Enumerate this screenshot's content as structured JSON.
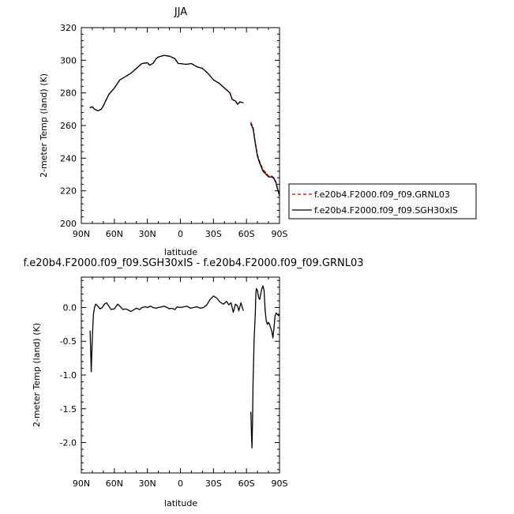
{
  "chart_data": [
    {
      "type": "line",
      "title": "JJA",
      "xlabel": "latitude",
      "ylabel": "2-meter Temp (land) (K)",
      "xlim": [
        90,
        -90
      ],
      "ylim": [
        200,
        320
      ],
      "xticks": [
        90,
        60,
        30,
        0,
        -30,
        -60,
        -90
      ],
      "xtick_labels": [
        "90N",
        "60N",
        "30N",
        "0",
        "30S",
        "60S",
        "90S"
      ],
      "yticks": [
        200,
        220,
        240,
        260,
        280,
        300,
        320
      ],
      "ytick_labels": [
        "200",
        "220",
        "240",
        "260",
        "280",
        "300",
        "320"
      ],
      "legend": {
        "placement": "right",
        "entries": [
          {
            "label": "f.e20b4.F2000.f09_f09.GRNL03",
            "color": "#cc0000",
            "style": "dashed"
          },
          {
            "label": "f.e20b4.F2000.f09_f09.SGH30xIS",
            "color": "#000000",
            "style": "solid"
          }
        ]
      },
      "series": [
        {
          "name": "f.e20b4.F2000.f09_f09.GRNL03",
          "color": "#cc0000",
          "segments": [
            [
              [
                82,
                271
              ],
              [
                80,
                271.5
              ],
              [
                78,
                270
              ],
              [
                75,
                269
              ],
              [
                72,
                270
              ],
              [
                70,
                272
              ],
              [
                68,
                275
              ],
              [
                65,
                279
              ],
              [
                60,
                283
              ],
              [
                55,
                288
              ],
              [
                50,
                290
              ],
              [
                45,
                292
              ],
              [
                40,
                295
              ],
              [
                35,
                298
              ],
              [
                30,
                298.5
              ],
              [
                28,
                297
              ],
              [
                25,
                298
              ],
              [
                22,
                301
              ],
              [
                20,
                302
              ],
              [
                15,
                303
              ],
              [
                10,
                302.5
              ],
              [
                5,
                301
              ],
              [
                2,
                298
              ],
              [
                0,
                298
              ],
              [
                -5,
                297.5
              ],
              [
                -10,
                298
              ],
              [
                -15,
                296
              ],
              [
                -20,
                295
              ],
              [
                -25,
                292
              ],
              [
                -30,
                288
              ],
              [
                -35,
                286
              ],
              [
                -40,
                283
              ],
              [
                -45,
                280
              ],
              [
                -47,
                276
              ],
              [
                -50,
                275
              ],
              [
                -52,
                273
              ],
              [
                -54,
                274.5
              ],
              [
                -57,
                274
              ]
            ],
            [
              [
                -64,
                262
              ],
              [
                -66,
                259
              ],
              [
                -68,
                250
              ],
              [
                -70,
                242
              ],
              [
                -72,
                238
              ],
              [
                -75,
                233
              ],
              [
                -78,
                231
              ],
              [
                -80,
                229
              ],
              [
                -83,
                229
              ],
              [
                -85,
                228
              ],
              [
                -87,
                225
              ],
              [
                -88,
                222
              ],
              [
                -90,
                217
              ]
            ]
          ]
        },
        {
          "name": "f.e20b4.F2000.f09_f09.SGH30xIS",
          "color": "#000000",
          "segments": [
            [
              [
                82,
                271
              ],
              [
                80,
                271.5
              ],
              [
                78,
                270
              ],
              [
                75,
                269
              ],
              [
                72,
                270
              ],
              [
                70,
                272
              ],
              [
                68,
                275
              ],
              [
                65,
                279
              ],
              [
                60,
                283
              ],
              [
                55,
                288
              ],
              [
                50,
                290
              ],
              [
                45,
                292
              ],
              [
                40,
                295
              ],
              [
                35,
                298
              ],
              [
                30,
                298.5
              ],
              [
                28,
                297
              ],
              [
                25,
                298
              ],
              [
                22,
                301
              ],
              [
                20,
                302
              ],
              [
                15,
                303
              ],
              [
                10,
                302.5
              ],
              [
                5,
                301
              ],
              [
                2,
                298
              ],
              [
                0,
                298
              ],
              [
                -5,
                297.5
              ],
              [
                -10,
                298
              ],
              [
                -15,
                296
              ],
              [
                -20,
                295
              ],
              [
                -25,
                292
              ],
              [
                -30,
                288
              ],
              [
                -35,
                286
              ],
              [
                -40,
                283
              ],
              [
                -45,
                280
              ],
              [
                -47,
                276
              ],
              [
                -50,
                275
              ],
              [
                -52,
                273
              ],
              [
                -54,
                274.5
              ],
              [
                -57,
                274
              ]
            ],
            [
              [
                -64,
                261
              ],
              [
                -66,
                258
              ],
              [
                -68,
                249
              ],
              [
                -70,
                241
              ],
              [
                -72,
                237
              ],
              [
                -75,
                232
              ],
              [
                -78,
                230
              ],
              [
                -80,
                228.5
              ],
              [
                -83,
                228.5
              ],
              [
                -85,
                227.5
              ],
              [
                -87,
                224.5
              ],
              [
                -88,
                221.5
              ],
              [
                -90,
                217
              ]
            ]
          ]
        }
      ]
    },
    {
      "type": "line",
      "title": "f.e20b4.F2000.f09_f09.SGH30xIS - f.e20b4.F2000.f09_f09.GRNL03",
      "xlabel": "latitude",
      "ylabel": "2-meter Temp (land) (K)",
      "xlim": [
        90,
        -90
      ],
      "ylim": [
        -2.45,
        0.45
      ],
      "xticks": [
        90,
        60,
        30,
        0,
        -30,
        -60,
        -90
      ],
      "xtick_labels": [
        "90N",
        "60N",
        "30N",
        "0",
        "30S",
        "60S",
        "90S"
      ],
      "yticks": [
        0.0,
        -0.5,
        -1.0,
        -1.5,
        -2.0
      ],
      "ytick_labels": [
        "0.0",
        "-0.5",
        "-1.0",
        "-1.5",
        "-2.0"
      ],
      "series": [
        {
          "color": "#000000",
          "segments": [
            [
              [
                82,
                -0.35
              ],
              [
                81,
                -0.95
              ],
              [
                80,
                -0.45
              ],
              [
                79,
                -0.1
              ],
              [
                78,
                0.0
              ],
              [
                77,
                0.05
              ],
              [
                75,
                0.02
              ],
              [
                73,
                -0.02
              ],
              [
                71,
                0.0
              ],
              [
                69,
                0.05
              ],
              [
                67,
                0.07
              ],
              [
                65,
                0.02
              ],
              [
                63,
                -0.03
              ],
              [
                60,
                -0.02
              ],
              [
                57,
                0.05
              ],
              [
                55,
                0.02
              ],
              [
                52,
                -0.03
              ],
              [
                50,
                -0.02
              ],
              [
                47,
                -0.04
              ],
              [
                45,
                -0.06
              ],
              [
                42,
                -0.03
              ],
              [
                40,
                -0.01
              ],
              [
                37,
                -0.03
              ],
              [
                35,
                0.0
              ],
              [
                32,
                0.01
              ],
              [
                30,
                0.0
              ],
              [
                27,
                0.02
              ],
              [
                25,
                0.0
              ],
              [
                22,
                -0.01
              ],
              [
                20,
                0.0
              ],
              [
                17,
                0.01
              ],
              [
                15,
                0.02
              ],
              [
                12,
                0.0
              ],
              [
                10,
                -0.02
              ],
              [
                8,
                -0.01
              ],
              [
                5,
                -0.03
              ],
              [
                3,
                0.01
              ],
              [
                0,
                0.0
              ],
              [
                -3,
                0.01
              ],
              [
                -6,
                0.02
              ],
              [
                -9,
                -0.01
              ],
              [
                -12,
                0.0
              ],
              [
                -15,
                0.01
              ],
              [
                -18,
                -0.01
              ],
              [
                -21,
                0.0
              ],
              [
                -24,
                0.04
              ],
              [
                -27,
                0.12
              ],
              [
                -30,
                0.17
              ],
              [
                -33,
                0.14
              ],
              [
                -36,
                0.08
              ],
              [
                -39,
                0.05
              ],
              [
                -42,
                0.09
              ],
              [
                -44,
                0.04
              ],
              [
                -46,
                0.07
              ],
              [
                -48,
                -0.07
              ],
              [
                -50,
                0.05
              ],
              [
                -52,
                0.02
              ],
              [
                -53,
                -0.05
              ],
              [
                -55,
                0.07
              ],
              [
                -57,
                -0.04
              ]
            ],
            [
              [
                -64,
                -1.55
              ],
              [
                -64.5,
                -1.85
              ],
              [
                -65,
                -2.08
              ],
              [
                -65.5,
                -1.7
              ],
              [
                -66,
                -1.1
              ],
              [
                -67,
                -0.45
              ],
              [
                -68,
                -0.1
              ],
              [
                -68.5,
                0.2
              ],
              [
                -69,
                0.28
              ],
              [
                -70,
                0.25
              ],
              [
                -71,
                0.15
              ],
              [
                -72,
                0.12
              ],
              [
                -73,
                0.2
              ],
              [
                -74,
                0.28
              ],
              [
                -75,
                0.32
              ],
              [
                -76,
                0.25
              ],
              [
                -77,
                -0.05
              ],
              [
                -78,
                -0.2
              ],
              [
                -79,
                -0.25
              ],
              [
                -80,
                -0.22
              ],
              [
                -81,
                -0.25
              ],
              [
                -82,
                -0.3
              ],
              [
                -83,
                -0.35
              ],
              [
                -84,
                -0.45
              ],
              [
                -85,
                -0.3
              ],
              [
                -86,
                -0.12
              ],
              [
                -87,
                -0.08
              ],
              [
                -88,
                -0.1
              ],
              [
                -89,
                -0.12
              ],
              [
                -90,
                -0.1
              ]
            ]
          ]
        }
      ]
    }
  ]
}
